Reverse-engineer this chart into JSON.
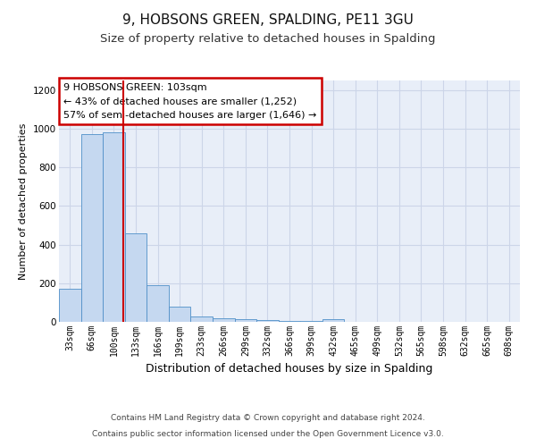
{
  "title": "9, HOBSONS GREEN, SPALDING, PE11 3GU",
  "subtitle": "Size of property relative to detached houses in Spalding",
  "xlabel": "Distribution of detached houses by size in Spalding",
  "ylabel": "Number of detached properties",
  "bar_labels": [
    "33sqm",
    "66sqm",
    "100sqm",
    "133sqm",
    "166sqm",
    "199sqm",
    "233sqm",
    "266sqm",
    "299sqm",
    "332sqm",
    "366sqm",
    "399sqm",
    "432sqm",
    "465sqm",
    "499sqm",
    "532sqm",
    "565sqm",
    "598sqm",
    "632sqm",
    "665sqm",
    "698sqm"
  ],
  "bar_values": [
    170,
    970,
    980,
    460,
    190,
    80,
    30,
    20,
    15,
    10,
    5,
    5,
    15,
    0,
    0,
    0,
    0,
    0,
    0,
    0,
    0
  ],
  "bar_color": "#c5d8f0",
  "bar_edge_color": "#5090c8",
  "red_line_x": 2.45,
  "annotation_text": "9 HOBSONS GREEN: 103sqm\n← 43% of detached houses are smaller (1,252)\n57% of semi-detached houses are larger (1,646) →",
  "annotation_box_color": "#ffffff",
  "annotation_border_color": "#cc0000",
  "ylim": [
    0,
    1250
  ],
  "yticks": [
    0,
    200,
    400,
    600,
    800,
    1000,
    1200
  ],
  "grid_color": "#ccd5e8",
  "axes_background": "#e8eef8",
  "footnote_line1": "Contains HM Land Registry data © Crown copyright and database right 2024.",
  "footnote_line2": "Contains public sector information licensed under the Open Government Licence v3.0.",
  "title_fontsize": 11,
  "subtitle_fontsize": 9.5,
  "ylabel_fontsize": 8,
  "xlabel_fontsize": 9,
  "tick_fontsize": 7,
  "annotation_fontsize": 8,
  "footnote_fontsize": 6.5
}
